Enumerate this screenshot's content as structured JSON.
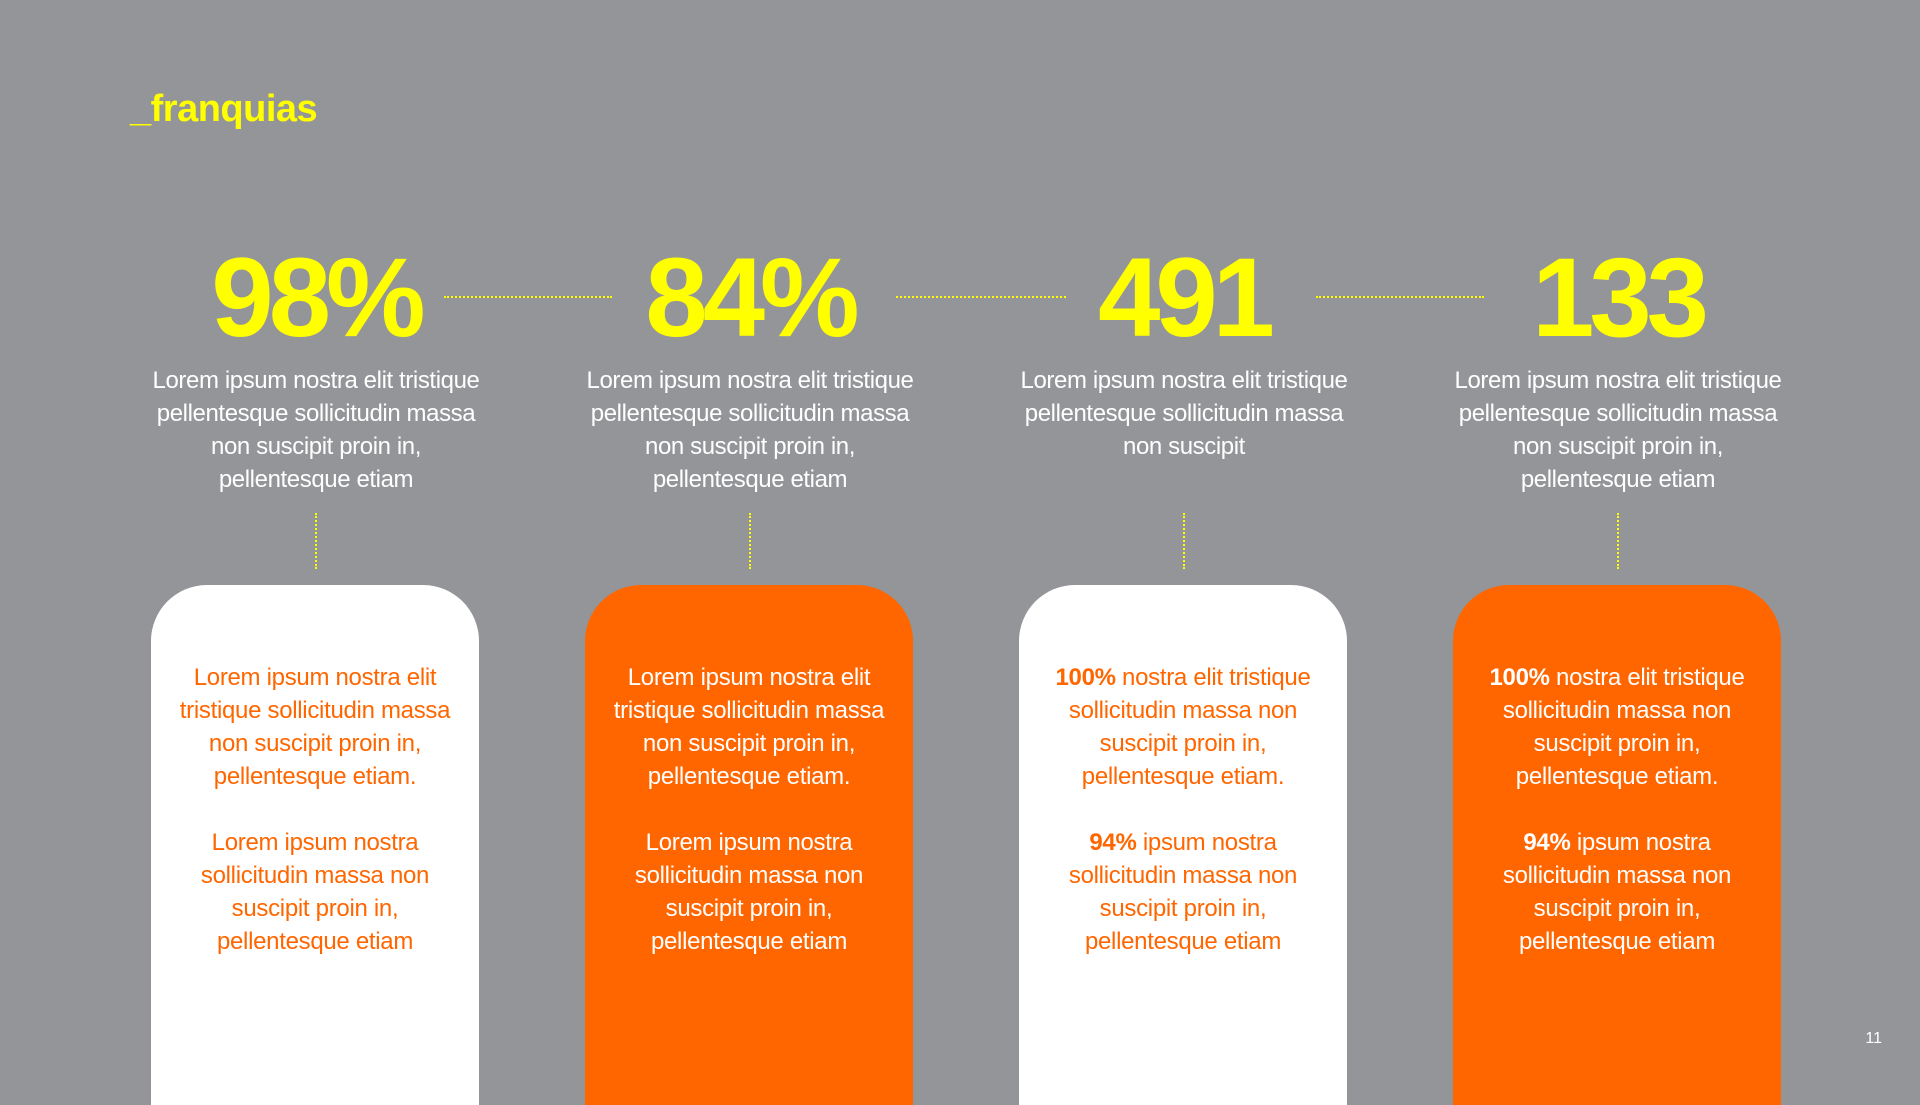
{
  "title": "_franquias",
  "colors": {
    "background": "#939598",
    "accent_yellow": "#FFFF00",
    "accent_orange": "#FF6600",
    "white": "#FFFFFF"
  },
  "columns": [
    {
      "value": "98%",
      "description": "Lorem ipsum nostra elit tristique pellentesque sollicitudin massa non suscipit proin in, pellentesque etiam",
      "card_style": "white",
      "card_paragraphs": [
        {
          "bold": "",
          "text": "Lorem ipsum nostra elit tristique sollicitudin massa non suscipit proin in, pellentesque etiam."
        },
        {
          "bold": "",
          "text": "Lorem ipsum nostra sollicitudin massa non suscipit proin in, pellentesque etiam"
        }
      ]
    },
    {
      "value": "84%",
      "description": "Lorem ipsum nostra elit tristique pellentesque sollicitudin massa non suscipit proin in, pellentesque etiam",
      "card_style": "orange",
      "card_paragraphs": [
        {
          "bold": "",
          "text": "Lorem ipsum nostra elit tristique sollicitudin massa non suscipit proin in, pellentesque etiam."
        },
        {
          "bold": "",
          "text": "Lorem ipsum nostra sollicitudin massa non suscipit proin in, pellentesque etiam"
        }
      ]
    },
    {
      "value": "491",
      "description": "Lorem ipsum nostra elit tristique pellentesque sollicitudin massa non suscipit",
      "card_style": "white",
      "card_paragraphs": [
        {
          "bold": "100%",
          "text": "nostra elit tristique sollicitudin massa non suscipit proin in, pellentesque etiam."
        },
        {
          "bold": "94%",
          "text": "ipsum nostra sollicitudin massa non suscipit proin in, pellentesque etiam"
        }
      ]
    },
    {
      "value": "133",
      "description": "Lorem ipsum nostra elit tristique pellentesque sollicitudin massa non suscipit proin in, pellentesque etiam",
      "card_style": "orange",
      "card_paragraphs": [
        {
          "bold": "100%",
          "text": "nostra elit tristique sollicitudin massa non suscipit proin in, pellentesque etiam."
        },
        {
          "bold": "94%",
          "text": "ipsum nostra sollicitudin massa non suscipit proin in, pellentesque etiam"
        }
      ]
    }
  ],
  "page_number": "11"
}
